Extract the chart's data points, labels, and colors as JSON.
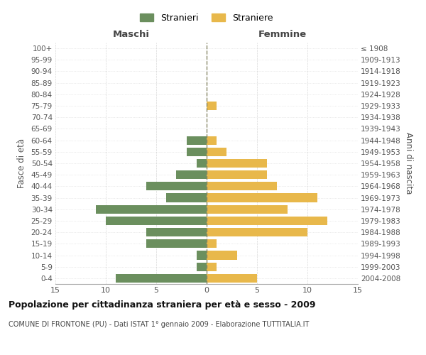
{
  "age_groups": [
    "0-4",
    "5-9",
    "10-14",
    "15-19",
    "20-24",
    "25-29",
    "30-34",
    "35-39",
    "40-44",
    "45-49",
    "50-54",
    "55-59",
    "60-64",
    "65-69",
    "70-74",
    "75-79",
    "80-84",
    "85-89",
    "90-94",
    "95-99",
    "100+"
  ],
  "birth_years": [
    "2004-2008",
    "1999-2003",
    "1994-1998",
    "1989-1993",
    "1984-1988",
    "1979-1983",
    "1974-1978",
    "1969-1973",
    "1964-1968",
    "1959-1963",
    "1954-1958",
    "1949-1953",
    "1944-1948",
    "1939-1943",
    "1934-1938",
    "1929-1933",
    "1924-1928",
    "1919-1923",
    "1914-1918",
    "1909-1913",
    "≤ 1908"
  ],
  "maschi": [
    9,
    1,
    1,
    6,
    6,
    10,
    11,
    4,
    6,
    3,
    1,
    2,
    2,
    0,
    0,
    0,
    0,
    0,
    0,
    0,
    0
  ],
  "femmine": [
    5,
    1,
    3,
    1,
    10,
    12,
    8,
    11,
    7,
    6,
    6,
    2,
    1,
    0,
    0,
    1,
    0,
    0,
    0,
    0,
    0
  ],
  "male_color": "#6b8f5e",
  "female_color": "#e8b84b",
  "title": "Popolazione per cittadinanza straniera per età e sesso - 2009",
  "subtitle": "COMUNE DI FRONTONE (PU) - Dati ISTAT 1° gennaio 2009 - Elaborazione TUTTITALIA.IT",
  "xlabel_left": "Maschi",
  "xlabel_right": "Femmine",
  "ylabel_left": "Fasce di età",
  "ylabel_right": "Anni di nascita",
  "legend_male": "Stranieri",
  "legend_female": "Straniere",
  "xlim": 15,
  "bg_color": "#ffffff",
  "grid_color": "#d0d0d0",
  "centerline_color": "#888866"
}
